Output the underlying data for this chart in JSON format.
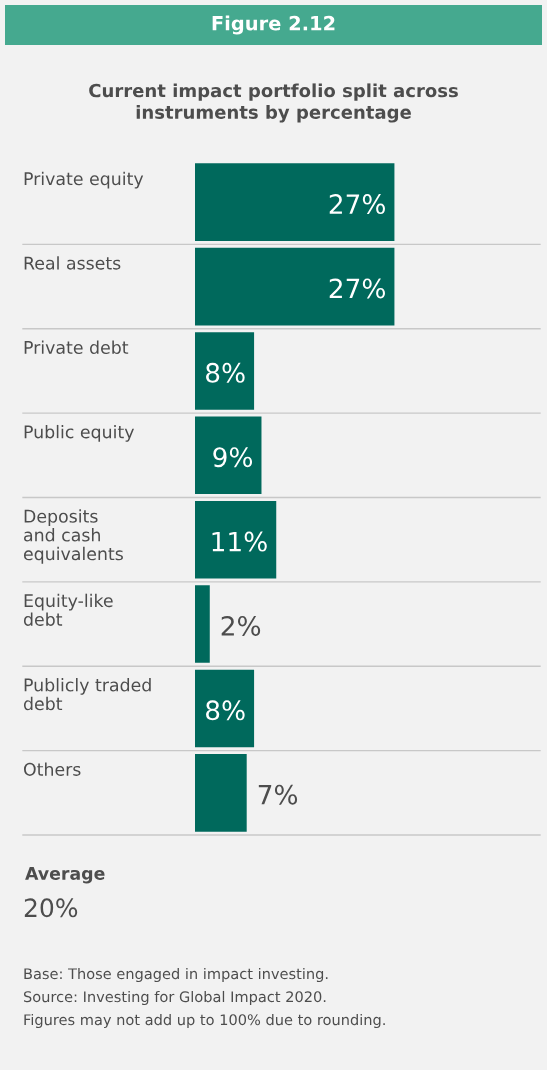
{
  "chart_data": {
    "type": "bar",
    "orientation": "horizontal",
    "title": "Figure 2.12",
    "subtitle": "Current impact portfolio split across\ninstruments by percentage",
    "categories": [
      "Private equity",
      "Real assets",
      "Private debt",
      "Public equity",
      "Deposits\nand cash\nequivalents",
      "Equity-like\ndebt",
      "Publicly traded\ndebt",
      "Others"
    ],
    "values": [
      27,
      27,
      8,
      9,
      11,
      2,
      8,
      7
    ],
    "value_labels": [
      "27%",
      "27%",
      "8%",
      "9%",
      "11%",
      "2%",
      "8%",
      "7%"
    ],
    "color": "#00695c",
    "tick_labels": "y",
    "annotations": [
      "Average",
      "20%",
      "Base: Those engaged in impact investing.",
      "Source: Investing for Global Impact 2020.",
      "Figures may not add up to 100% due to rounding."
    ]
  }
}
